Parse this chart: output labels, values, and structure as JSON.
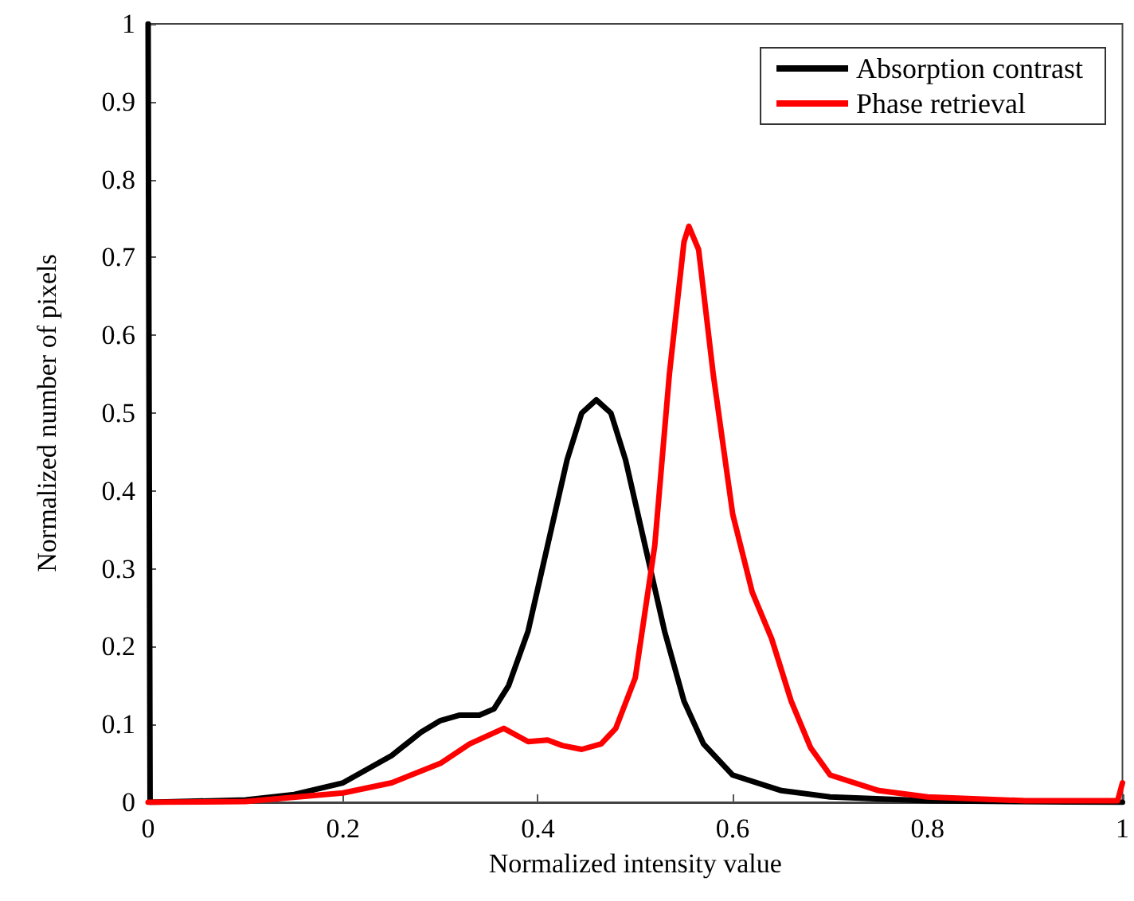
{
  "chart_data": {
    "type": "line",
    "xlabel": "Normalized intensity value",
    "ylabel": "Normalized number of pixels",
    "xlim": [
      0,
      1
    ],
    "ylim": [
      0,
      1
    ],
    "xticks": [
      0,
      0.2,
      0.4,
      0.6,
      0.8,
      1
    ],
    "yticks": [
      0,
      0.1,
      0.2,
      0.3,
      0.4,
      0.5,
      0.6,
      0.7,
      0.8,
      0.9,
      1
    ],
    "grid": false,
    "legend": "top right",
    "marker": "none",
    "line_style": "solid",
    "series": [
      {
        "name": "Absorption contrast",
        "color": "#000000",
        "x": [
          0,
          0.002,
          0.1,
          0.15,
          0.2,
          0.25,
          0.28,
          0.3,
          0.32,
          0.34,
          0.355,
          0.37,
          0.39,
          0.41,
          0.43,
          0.445,
          0.46,
          0.475,
          0.49,
          0.51,
          0.53,
          0.55,
          0.57,
          0.6,
          0.65,
          0.7,
          0.8,
          1
        ],
        "values": [
          1,
          0,
          0.003,
          0.01,
          0.025,
          0.06,
          0.09,
          0.105,
          0.112,
          0.112,
          0.12,
          0.15,
          0.22,
          0.33,
          0.44,
          0.5,
          0.517,
          0.5,
          0.44,
          0.33,
          0.22,
          0.13,
          0.075,
          0.035,
          0.015,
          0.007,
          0.002,
          0
        ]
      },
      {
        "name": "Phase retrieval",
        "color": "#ff0000",
        "x": [
          0,
          0.1,
          0.2,
          0.25,
          0.3,
          0.33,
          0.365,
          0.39,
          0.41,
          0.425,
          0.445,
          0.465,
          0.48,
          0.5,
          0.52,
          0.535,
          0.55,
          0.555,
          0.565,
          0.58,
          0.6,
          0.62,
          0.64,
          0.66,
          0.68,
          0.7,
          0.75,
          0.8,
          0.9,
          0.995,
          1
        ],
        "values": [
          0,
          0.001,
          0.012,
          0.025,
          0.05,
          0.075,
          0.095,
          0.078,
          0.08,
          0.073,
          0.068,
          0.075,
          0.095,
          0.16,
          0.33,
          0.55,
          0.72,
          0.74,
          0.71,
          0.55,
          0.37,
          0.27,
          0.21,
          0.13,
          0.07,
          0.035,
          0.015,
          0.007,
          0.002,
          0.002,
          0.025
        ]
      }
    ]
  }
}
